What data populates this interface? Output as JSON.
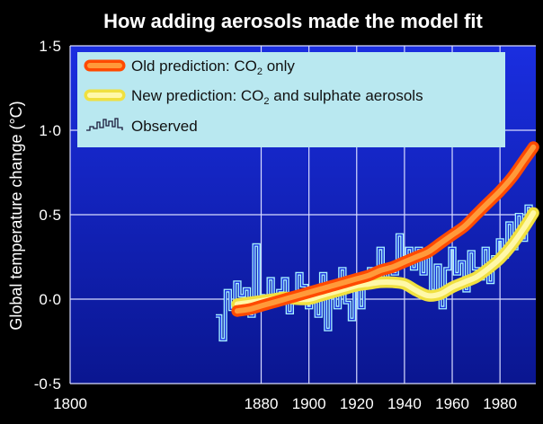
{
  "chart_data": {
    "type": "line",
    "title": "How adding aerosols made the model fit",
    "xlabel": "",
    "ylabel": "Global temperature change (°C)",
    "xlim": [
      1800,
      1995
    ],
    "ylim": [
      -0.5,
      1.5
    ],
    "xticks": [
      1800,
      1880,
      1900,
      1920,
      1940,
      1960,
      1980
    ],
    "xtick_labels": [
      "1800",
      "1880",
      "1900",
      "1920",
      "1940",
      "1960",
      "1980"
    ],
    "yticks": [
      -0.5,
      0.0,
      0.5,
      1.0,
      1.5
    ],
    "ytick_labels": [
      "-0·5",
      "0·0",
      "0·5",
      "1·0",
      "1·5"
    ],
    "colors": {
      "background": "#000000",
      "plot_top": "#1a2ee0",
      "plot_bottom": "#0a1690",
      "grid": "#d8dcff",
      "legend_bg": "#b9e8f0",
      "old_outer": "#ff4a00",
      "old_inner": "#ff9a3a",
      "new_outer": "#f0e040",
      "new_inner": "#fff8a8",
      "observed": "#a8f4ff"
    },
    "legend": [
      {
        "series": "old",
        "label": "Old prediction: CO",
        "sub": "2",
        "suffix": " only"
      },
      {
        "series": "new",
        "label": "New prediction: CO",
        "sub": "2",
        "suffix": " and sulphate aerosols"
      },
      {
        "series": "observed",
        "label": "Observed",
        "sub": "",
        "suffix": ""
      }
    ],
    "series": [
      {
        "name": "Old prediction: CO2 only",
        "key": "old",
        "x": [
          1870,
          1875,
          1880,
          1885,
          1890,
          1895,
          1900,
          1905,
          1910,
          1915,
          1920,
          1925,
          1930,
          1935,
          1940,
          1945,
          1950,
          1955,
          1960,
          1965,
          1970,
          1975,
          1980,
          1985,
          1990,
          1994
        ],
        "y": [
          -0.07,
          -0.06,
          -0.04,
          -0.02,
          0.0,
          0.02,
          0.04,
          0.06,
          0.08,
          0.1,
          0.12,
          0.14,
          0.17,
          0.19,
          0.22,
          0.25,
          0.28,
          0.33,
          0.38,
          0.43,
          0.5,
          0.57,
          0.64,
          0.72,
          0.82,
          0.9
        ]
      },
      {
        "name": "New prediction: CO2 and sulphate aerosols",
        "key": "new",
        "x": [
          1870,
          1875,
          1880,
          1885,
          1890,
          1895,
          1900,
          1905,
          1910,
          1915,
          1920,
          1925,
          1930,
          1935,
          1940,
          1945,
          1950,
          1955,
          1960,
          1965,
          1970,
          1975,
          1980,
          1985,
          1990,
          1994
        ],
        "y": [
          -0.03,
          -0.02,
          -0.01,
          0.0,
          0.01,
          0.0,
          0.0,
          0.02,
          0.04,
          0.06,
          0.08,
          0.09,
          0.1,
          0.1,
          0.09,
          0.05,
          0.02,
          0.03,
          0.07,
          0.1,
          0.13,
          0.18,
          0.24,
          0.32,
          0.42,
          0.51
        ]
      },
      {
        "name": "Observed",
        "key": "observed",
        "x": [
          1861,
          1863,
          1865,
          1867,
          1869,
          1871,
          1873,
          1875,
          1877,
          1879,
          1881,
          1883,
          1885,
          1887,
          1889,
          1891,
          1893,
          1895,
          1897,
          1899,
          1901,
          1903,
          1905,
          1907,
          1909,
          1911,
          1913,
          1915,
          1917,
          1919,
          1921,
          1923,
          1925,
          1927,
          1929,
          1931,
          1933,
          1935,
          1937,
          1939,
          1941,
          1943,
          1945,
          1947,
          1949,
          1951,
          1953,
          1955,
          1957,
          1959,
          1961,
          1963,
          1965,
          1967,
          1969,
          1971,
          1973,
          1975,
          1977,
          1979,
          1981,
          1983,
          1985,
          1987,
          1989,
          1991,
          1993
        ],
        "y": [
          -0.1,
          -0.24,
          0.05,
          -0.06,
          0.1,
          0.02,
          0.06,
          -0.1,
          0.32,
          0.02,
          -0.05,
          0.12,
          -0.03,
          0.05,
          0.12,
          -0.08,
          0.02,
          0.15,
          0.08,
          -0.05,
          0.05,
          -0.1,
          0.15,
          -0.18,
          0.05,
          -0.05,
          0.18,
          -0.02,
          -0.12,
          0.1,
          -0.05,
          0.12,
          0.18,
          0.1,
          0.3,
          0.12,
          0.2,
          0.15,
          0.38,
          0.25,
          0.3,
          0.18,
          0.3,
          0.15,
          0.25,
          0.05,
          0.2,
          -0.05,
          0.18,
          0.3,
          0.15,
          0.22,
          0.05,
          0.28,
          0.18,
          0.12,
          0.3,
          0.1,
          0.25,
          0.35,
          0.25,
          0.45,
          0.3,
          0.5,
          0.35,
          0.55,
          0.45
        ]
      }
    ]
  }
}
